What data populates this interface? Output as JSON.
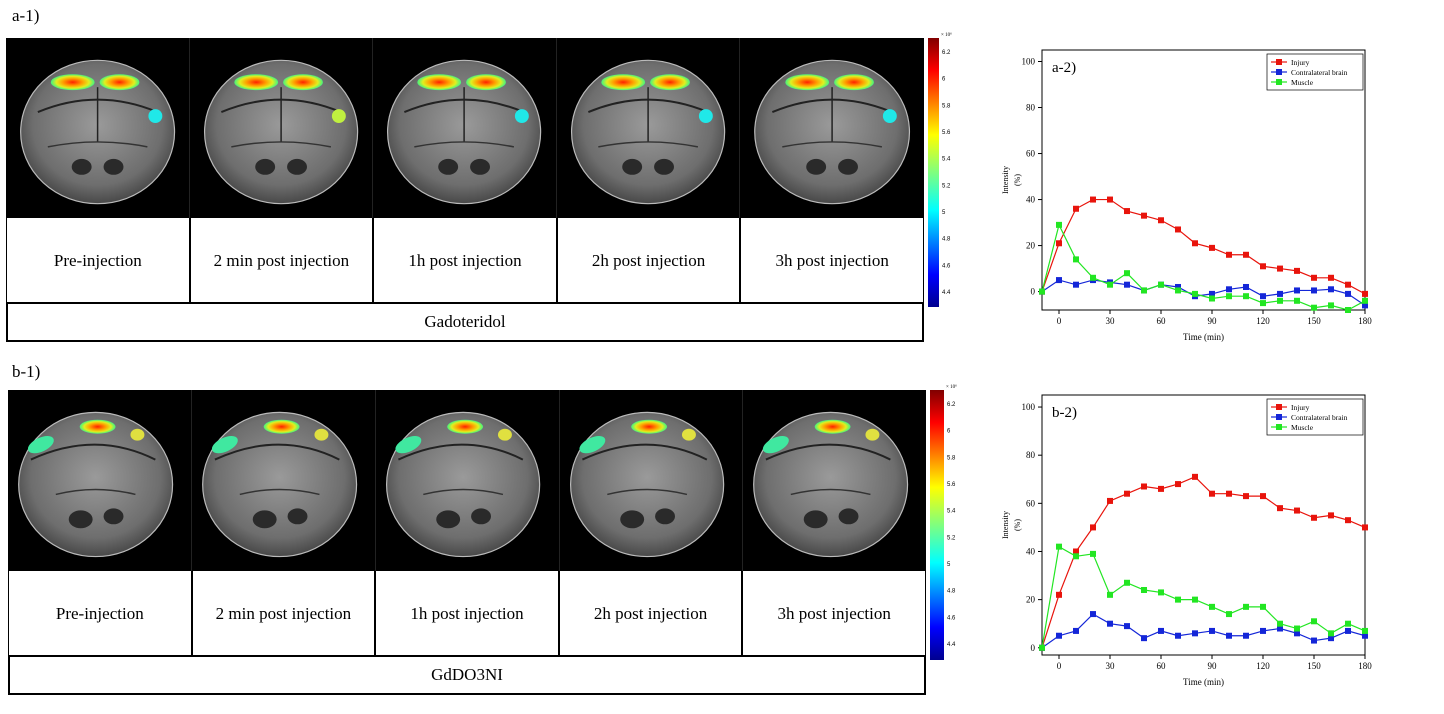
{
  "panels": {
    "a1_label": "a-1)",
    "b1_label": "b-1)"
  },
  "rows": [
    {
      "id": "a",
      "captions": [
        "Pre-injection",
        "2 min post injection",
        "1h post injection",
        "2h post injection",
        "3h post injection"
      ],
      "agent": "Gadoteridol"
    },
    {
      "id": "b",
      "captions": [
        "Pre-injection",
        "2 min post injection",
        "1h post injection",
        "2h post injection",
        "3h post injection"
      ],
      "agent": "GdDO3NI"
    }
  ],
  "colorbar": {
    "multiplier": "× 10⁶",
    "ticks_a": [
      "6.2",
      "6",
      "5.8",
      "5.6",
      "5.4",
      "5.2",
      "5",
      "4.8",
      "4.6",
      "4.4"
    ],
    "ticks_b": [
      "6.2",
      "6",
      "5.8",
      "5.6",
      "5.4",
      "5.2",
      "5",
      "4.8",
      "4.6",
      "4.4"
    ]
  },
  "chart_data": [
    {
      "type": "line",
      "panel_label": "a-2)",
      "title": "",
      "xlabel": "Time (min)",
      "ylabel": "Intensity",
      "ylabel_unit": "(%)",
      "xlim": [
        -10,
        180
      ],
      "ylim": [
        -8,
        105
      ],
      "xticks": [
        0,
        30,
        60,
        90,
        120,
        150,
        180
      ],
      "yticks": [
        0,
        20,
        40,
        60,
        80,
        100
      ],
      "legend_position": "top-right",
      "x": [
        -10,
        0,
        10,
        20,
        30,
        40,
        50,
        60,
        70,
        80,
        90,
        100,
        110,
        120,
        130,
        140,
        150,
        160,
        170,
        180
      ],
      "series": [
        {
          "name": "Injury",
          "color": "#e8140c",
          "values": [
            0,
            21,
            36,
            40,
            40,
            35,
            33,
            31,
            27,
            21,
            19,
            16,
            16,
            11,
            10,
            9,
            6,
            6,
            3,
            -1
          ]
        },
        {
          "name": "Contralateral brain",
          "color": "#1426d8",
          "values": [
            0,
            5,
            3,
            5,
            4,
            3,
            0.5,
            3,
            2,
            -2,
            -1,
            1,
            2,
            -2,
            -1,
            0.5,
            0.5,
            1,
            -1,
            -6
          ]
        },
        {
          "name": "Muscle",
          "color": "#22e622",
          "values": [
            0,
            29,
            14,
            6,
            3,
            8,
            0.5,
            3,
            0.5,
            -1,
            -3,
            -2,
            -2,
            -5,
            -4,
            -4,
            -7,
            -6,
            -8,
            -4
          ]
        }
      ]
    },
    {
      "type": "line",
      "panel_label": "b-2)",
      "title": "",
      "xlabel": "Time (min)",
      "ylabel": "Intensity",
      "ylabel_unit": "(%)",
      "xlim": [
        -10,
        180
      ],
      "ylim": [
        -3,
        105
      ],
      "xticks": [
        0,
        30,
        60,
        90,
        120,
        150,
        180
      ],
      "yticks": [
        0,
        20,
        40,
        60,
        80,
        100
      ],
      "legend_position": "top-right",
      "x": [
        -10,
        0,
        10,
        20,
        30,
        40,
        50,
        60,
        70,
        80,
        90,
        100,
        110,
        120,
        130,
        140,
        150,
        160,
        170,
        180
      ],
      "series": [
        {
          "name": "Injury",
          "color": "#e8140c",
          "values": [
            0,
            22,
            40,
            50,
            61,
            64,
            67,
            66,
            68,
            71,
            64,
            64,
            63,
            63,
            58,
            57,
            54,
            55,
            53,
            50
          ]
        },
        {
          "name": "Contralateral brain",
          "color": "#1426d8",
          "values": [
            0,
            5,
            7,
            14,
            10,
            9,
            4,
            7,
            5,
            6,
            7,
            5,
            5,
            7,
            8,
            6,
            3,
            4,
            7,
            5
          ]
        },
        {
          "name": "Muscle",
          "color": "#22e622",
          "values": [
            0,
            42,
            38,
            39,
            22,
            27,
            24,
            23,
            20,
            20,
            17,
            14,
            17,
            17,
            10,
            8,
            11,
            6,
            10,
            7
          ]
        }
      ]
    }
  ]
}
